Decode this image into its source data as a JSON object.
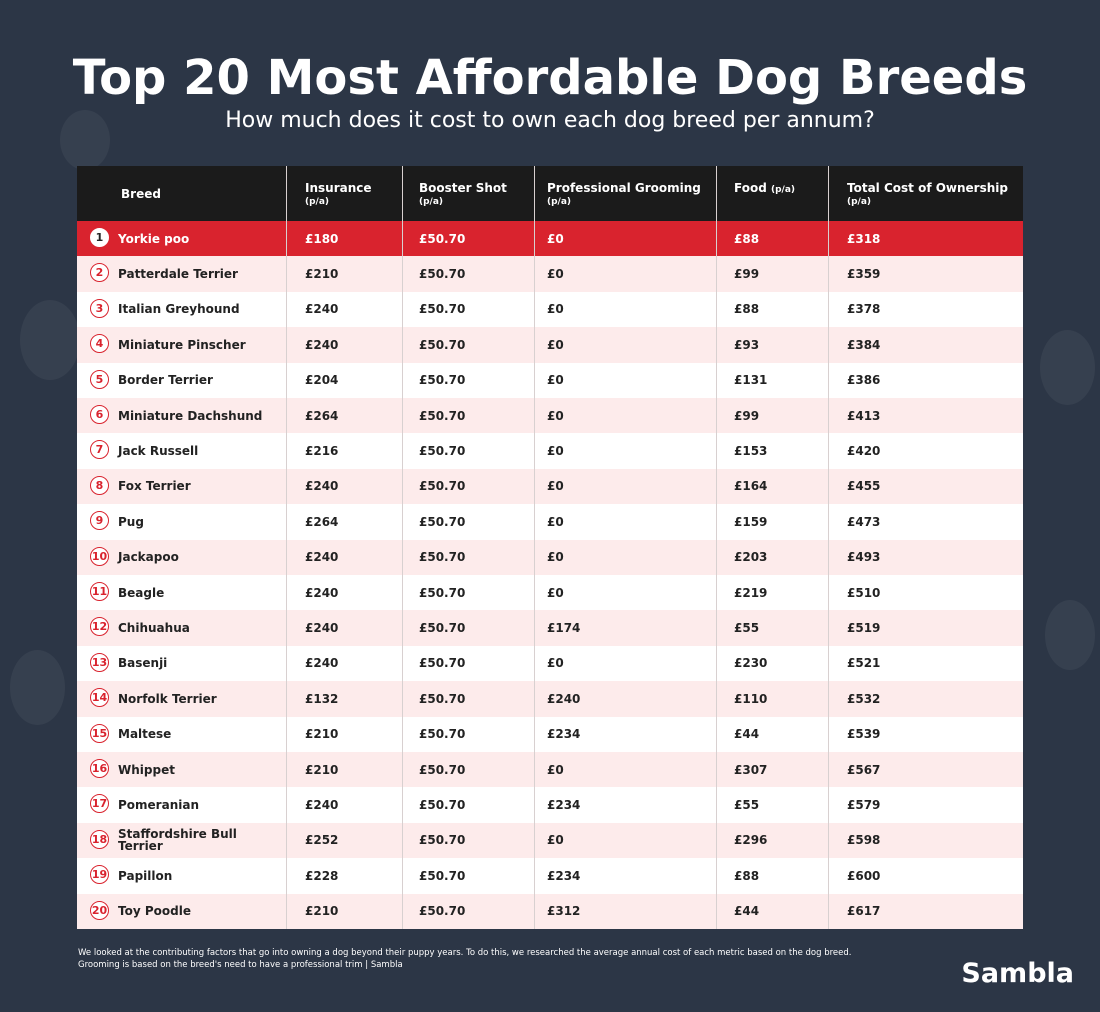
{
  "header": {
    "title": "Top 20 Most Affordable Dog Breeds",
    "subtitle": "How much does it cost to own each dog breed per annum?"
  },
  "table": {
    "columns": [
      {
        "label": "Breed"
      },
      {
        "label": "Insurance",
        "unit": "(p/a)"
      },
      {
        "label": "Booster Shot",
        "unit": "(p/a)"
      },
      {
        "label": "Professional Grooming",
        "unit": "(p/a)"
      },
      {
        "label": "Food",
        "unit": "(p/a)"
      },
      {
        "label": "Total Cost of Ownership",
        "unit": "(p/a)"
      }
    ],
    "rows": [
      [
        "1",
        "Yorkie poo",
        "£180",
        "£50.70",
        "£0",
        "£88",
        "£318"
      ],
      [
        "2",
        "Patterdale Terrier",
        "£210",
        "£50.70",
        "£0",
        "£99",
        "£359"
      ],
      [
        "3",
        "Italian Greyhound",
        "£240",
        "£50.70",
        "£0",
        "£88",
        "£378"
      ],
      [
        "4",
        "Miniature Pinscher",
        "£240",
        "£50.70",
        "£0",
        "£93",
        "£384"
      ],
      [
        "5",
        "Border Terrier",
        "£204",
        "£50.70",
        "£0",
        "£131",
        "£386"
      ],
      [
        "6",
        "Miniature Dachshund",
        "£264",
        "£50.70",
        "£0",
        "£99",
        "£413"
      ],
      [
        "7",
        "Jack Russell",
        "£216",
        "£50.70",
        "£0",
        "£153",
        "£420"
      ],
      [
        "8",
        "Fox Terrier",
        "£240",
        "£50.70",
        "£0",
        "£164",
        "£455"
      ],
      [
        "9",
        "Pug",
        "£264",
        "£50.70",
        "£0",
        "£159",
        "£473"
      ],
      [
        "10",
        "Jackapoo",
        "£240",
        "£50.70",
        "£0",
        "£203",
        "£493"
      ],
      [
        "11",
        "Beagle",
        "£240",
        "£50.70",
        "£0",
        "£219",
        "£510"
      ],
      [
        "12",
        "Chihuahua",
        "£240",
        "£50.70",
        "£174",
        "£55",
        "£519"
      ],
      [
        "13",
        "Basenji",
        "£240",
        "£50.70",
        "£0",
        "£230",
        "£521"
      ],
      [
        "14",
        "Norfolk Terrier",
        "£132",
        "£50.70",
        "£240",
        "£110",
        "£532"
      ],
      [
        "15",
        "Maltese",
        "£210",
        "£50.70",
        "£234",
        "£44",
        "£539"
      ],
      [
        "16",
        "Whippet",
        "£210",
        "£50.70",
        "£0",
        "£307",
        "£567"
      ],
      [
        "17",
        "Pomeranian",
        "£240",
        "£50.70",
        "£234",
        "£55",
        "£579"
      ],
      [
        "18",
        "Staffordshire Bull Terrier",
        "£252",
        "£50.70",
        "£0",
        "£296",
        "£598"
      ],
      [
        "19",
        "Papillon",
        "£228",
        "£50.70",
        "£234",
        "£88",
        "£600"
      ],
      [
        "20",
        "Toy Poodle",
        "£210",
        "£50.70",
        "£312",
        "£44",
        "£617"
      ]
    ]
  },
  "footer": {
    "notes": [
      "We looked at the contributing factors that go into owning a dog beyond their puppy years. To do this, we researched the average annual cost of each metric based on the dog breed.",
      "Grooming is based on the breed's need to have a professional trim | Sambla"
    ],
    "brand": "Sambla"
  }
}
